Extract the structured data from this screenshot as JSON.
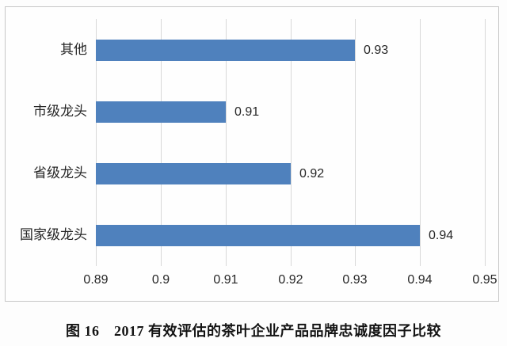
{
  "figure": {
    "caption": "图 16　2017 有效评估的茶叶企业产品品牌忠诚度因子比较"
  },
  "chart_data": {
    "type": "bar",
    "orientation": "horizontal",
    "title": "图 16　2017 有效评估的茶叶企业产品品牌忠诚度因子比较",
    "categories_top_to_bottom": [
      "其他",
      "市级龙头",
      "省级龙头",
      "国家级龙头"
    ],
    "values": [
      0.93,
      0.91,
      0.92,
      0.94
    ],
    "value_labels": [
      "0.93",
      "0.91",
      "0.92",
      "0.94"
    ],
    "xlim": [
      0.89,
      0.95
    ],
    "x_ticks": [
      0.89,
      0.9,
      0.91,
      0.92,
      0.93,
      0.94,
      0.95
    ],
    "x_tick_labels": [
      "0.89",
      "0.9",
      "0.91",
      "0.92",
      "0.93",
      "0.94",
      "0.95"
    ],
    "xlabel": "",
    "ylabel": "",
    "grid": true,
    "legend": false,
    "bar_color": "#4f81bd",
    "grid_color": "#d8d8d8",
    "frame_border_color": "#c7c7c7",
    "text_color": "#262626"
  }
}
